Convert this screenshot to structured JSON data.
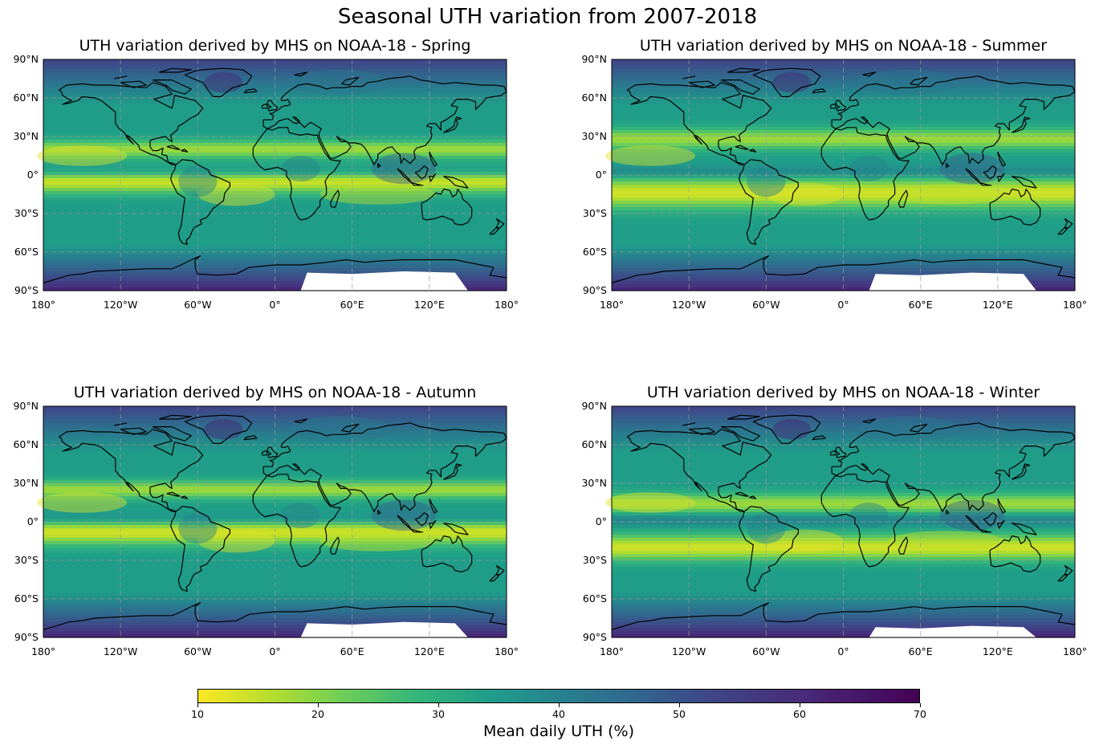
{
  "figure": {
    "suptitle": "Seasonal UTH variation from 2007-2018"
  },
  "panels": [
    {
      "title": "UTH variation derived by MHS on NOAA-18 - Spring",
      "season": "spring"
    },
    {
      "title": "UTH variation derived by MHS on NOAA-18 - Summer",
      "season": "summer"
    },
    {
      "title": "UTH variation derived by MHS on NOAA-18 - Autumn",
      "season": "autumn"
    },
    {
      "title": "UTH variation derived by MHS on NOAA-18 - Winter",
      "season": "winter"
    }
  ],
  "axes": {
    "lat_ticks": [
      "90°N",
      "60°N",
      "30°N",
      "0°",
      "30°S",
      "60°S",
      "90°S"
    ],
    "lon_ticks": [
      "180°",
      "120°W",
      "60°W",
      "0°",
      "60°E",
      "120°E",
      "180°"
    ]
  },
  "colorbar": {
    "label": "Mean daily UTH (%)",
    "ticks": [
      "10",
      "20",
      "30",
      "40",
      "50",
      "60",
      "70"
    ],
    "range": [
      10,
      70
    ],
    "colormap": "viridis_r"
  },
  "colors": {
    "dry": "#fde725",
    "moist": "#440154",
    "mid": "#21918c",
    "coastline": "#000000",
    "gridline": "#9a9a9a"
  }
}
